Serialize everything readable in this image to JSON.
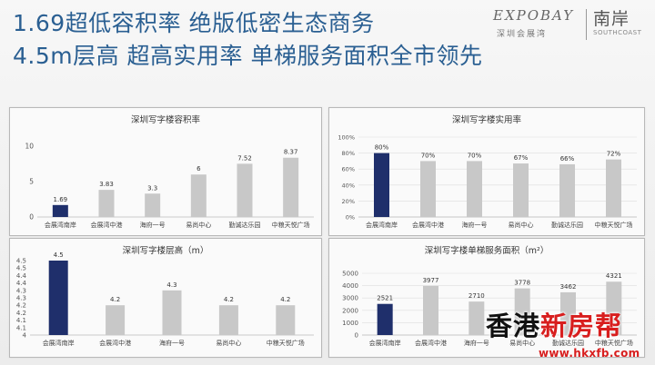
{
  "header": {
    "line1": "1.69超低容积率 绝版低密生态商务",
    "line2": "4.5m层高  超高实用率 单梯服务面积全市领先"
  },
  "brand": {
    "expobay": "EXPOBAY",
    "expobay_cn": "深圳会展湾",
    "nan_an": "南岸",
    "southcoast": "SOUTHCOAST"
  },
  "watermark": {
    "prefix": "香港",
    "red": "新房帮",
    "url": "www.hkxfb.com"
  },
  "colors": {
    "highlight": "#1f2f6b",
    "default": "#c8c8c8",
    "grid": "#dddddd",
    "headline": "#2a5f92"
  },
  "chart_data": [
    {
      "type": "bar",
      "title": "深圳写字楼容积率",
      "categories": [
        "会展湾南岸",
        "会展湾中港",
        "海府一号",
        "易尚中心",
        "勤诚达乐园",
        "中粮天悦广场"
      ],
      "values": [
        1.69,
        3.83,
        3.3,
        6,
        7.52,
        8.37
      ],
      "labels": [
        "1.69",
        "3.83",
        "3.3",
        "6",
        "7.52",
        "8.37"
      ],
      "ylim": [
        0,
        10
      ],
      "ticks": [
        "0",
        "5",
        "10"
      ],
      "tick_values": [
        0,
        5,
        10
      ],
      "highlight_index": 0,
      "grid": false
    },
    {
      "type": "bar",
      "title": "深圳写字楼实用率",
      "categories": [
        "会展湾南岸",
        "会展湾中港",
        "海府一号",
        "易尚中心",
        "勤诚达乐园",
        "中粮天悦广场"
      ],
      "values": [
        80,
        70,
        70,
        67,
        66,
        72
      ],
      "labels": [
        "80%",
        "70%",
        "70%",
        "67%",
        "66%",
        "72%"
      ],
      "ylim": [
        0,
        100
      ],
      "ticks": [
        "0%",
        "20%",
        "40%",
        "60%",
        "80%",
        "100%"
      ],
      "tick_values": [
        0,
        20,
        40,
        60,
        80,
        100
      ],
      "highlight_index": 0,
      "grid": true
    },
    {
      "type": "bar",
      "title": "深圳写字楼层高（m）",
      "categories": [
        "会展湾南岸",
        "会展湾中港",
        "海府一号",
        "易尚中心",
        "中粮天悦广场"
      ],
      "values": [
        4.5,
        4.2,
        4.3,
        4.2,
        4.2
      ],
      "labels": [
        "4.5",
        "4.2",
        "4.3",
        "4.2",
        "4.2"
      ],
      "ylim": [
        4,
        4.5
      ],
      "ticks": [
        "4",
        "4.1",
        "4.1",
        "4.2",
        "4.2",
        "4.3",
        "4.3",
        "4.4",
        "4.4",
        "4.5",
        "4.5"
      ],
      "tick_values": [
        4,
        4.05,
        4.1,
        4.15,
        4.2,
        4.25,
        4.3,
        4.35,
        4.4,
        4.45,
        4.5
      ],
      "highlight_index": 0,
      "grid": false
    },
    {
      "type": "bar",
      "title": "深圳写字楼单梯服务面积（m²）",
      "categories": [
        "会展湾南岸",
        "会展湾中港",
        "海府一号",
        "易尚中心",
        "勤诚达乐园",
        "中粮天悦广场"
      ],
      "values": [
        2521,
        3977,
        2710,
        3778,
        3462,
        4321
      ],
      "labels": [
        "2521",
        "3977",
        "2710",
        "3778",
        "3462",
        "4321"
      ],
      "ylim": [
        0,
        5000
      ],
      "ticks": [
        "0",
        "1000",
        "2000",
        "3000",
        "4000",
        "5000"
      ],
      "tick_values": [
        0,
        1000,
        2000,
        3000,
        4000,
        5000
      ],
      "highlight_index": 0,
      "grid": true
    }
  ]
}
